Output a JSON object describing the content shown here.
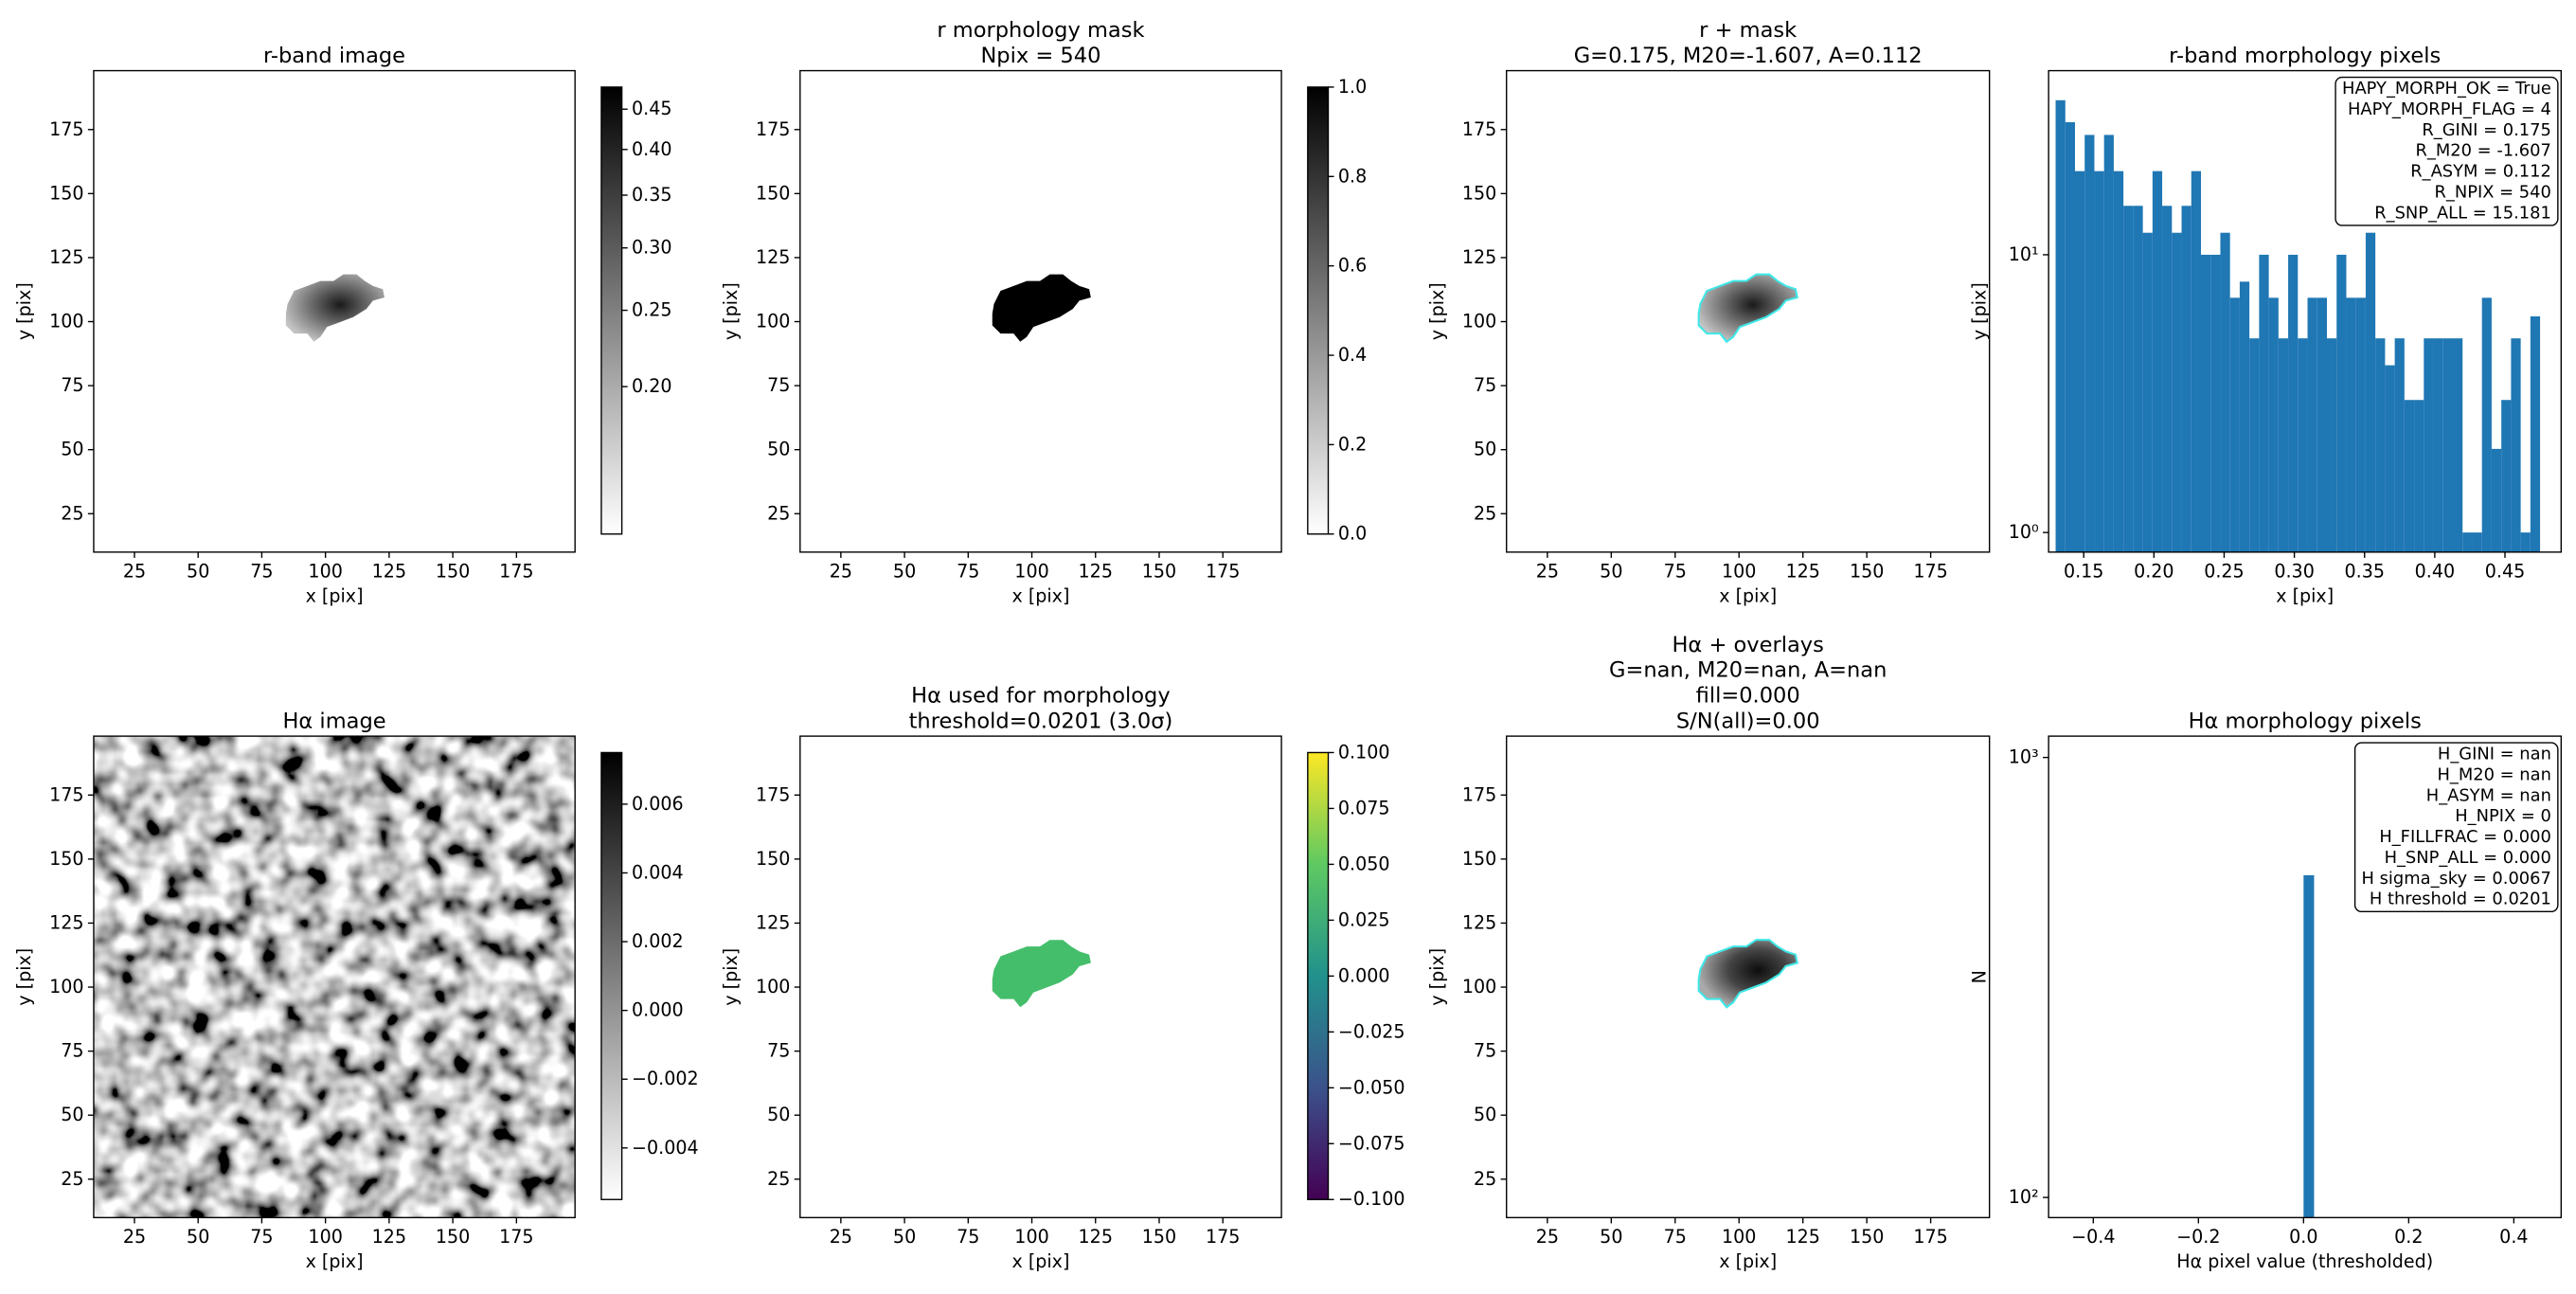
{
  "chart_data": [
    {
      "type": "image",
      "title": [
        "r-band image"
      ],
      "xlabel": "x [pix]",
      "ylabel": "y [pix]",
      "xlim": [
        9,
        198
      ],
      "ylim": [
        10,
        198
      ],
      "xticks": [
        25,
        50,
        75,
        100,
        125,
        150,
        175
      ],
      "yticks": [
        25,
        50,
        75,
        100,
        125,
        150,
        175
      ],
      "cmap": "gray_r",
      "cscale": "log",
      "clim": [
        0.13,
        0.48
      ],
      "cticks": [
        {
          "value": 0.2,
          "label": "0.20"
        },
        0.25,
        {
          "value": 0.3,
          "label": "0.30"
        },
        0.35,
        {
          "value": 0.4,
          "label": "0.40"
        },
        0.45
      ]
    },
    {
      "type": "image",
      "title": [
        "r morphology mask",
        "Npix = 540"
      ],
      "xlabel": "x [pix]",
      "ylabel": "y [pix]",
      "xlim": [
        9,
        198
      ],
      "ylim": [
        10,
        198
      ],
      "xticks": [
        25,
        50,
        75,
        100,
        125,
        150,
        175
      ],
      "yticks": [
        25,
        50,
        75,
        100,
        125,
        150,
        175
      ],
      "cmap": "gray_r",
      "cscale": "linear",
      "clim": [
        0,
        1
      ],
      "cticks": [
        {
          "value": 0,
          "label": "0.0"
        },
        0.2,
        0.4,
        0.6,
        0.8,
        {
          "value": 1,
          "label": "1.0"
        }
      ]
    },
    {
      "type": "image",
      "title": [
        "r + mask",
        "G=0.175, M20=-1.607, A=0.112"
      ],
      "xlabel": "x [pix]",
      "ylabel": "y [pix]",
      "xlim": [
        9,
        198
      ],
      "ylim": [
        10,
        198
      ],
      "xticks": [
        25,
        50,
        75,
        100,
        125,
        150,
        175
      ],
      "yticks": [
        25,
        50,
        75,
        100,
        125,
        150,
        175
      ]
    },
    {
      "type": "histogram",
      "title": [
        "r-band morphology pixels"
      ],
      "xlabel": "x [pix]",
      "ylabel": "y [pix]",
      "color": "#1f77b4",
      "yscale": "log",
      "bins": [
        0.13,
        0.1369,
        0.1438,
        0.1507,
        0.1576,
        0.1645,
        0.1714,
        0.1783,
        0.1852,
        0.1921,
        0.199,
        0.2059,
        0.2128,
        0.2197,
        0.2266,
        0.2335,
        0.2404,
        0.2473,
        0.2542,
        0.2611,
        0.268,
        0.2749,
        0.2818,
        0.2887,
        0.2956,
        0.3025,
        0.3094,
        0.3163,
        0.3232,
        0.3301,
        0.337,
        0.3439,
        0.3508,
        0.3577,
        0.3646,
        0.3715,
        0.3784,
        0.3853,
        0.3922,
        0.3991,
        0.406,
        0.4129,
        0.4198,
        0.4267,
        0.4336,
        0.4405,
        0.4474,
        0.4543,
        0.4612,
        0.4681,
        0.475
      ],
      "values": [
        36,
        30,
        20,
        27,
        20,
        27,
        20,
        15,
        15,
        12,
        20,
        15,
        12,
        15,
        20,
        10,
        10,
        12,
        7,
        8,
        5,
        10,
        7,
        5,
        10,
        5,
        7,
        7,
        5,
        10,
        7,
        7,
        12,
        5,
        4,
        5,
        3,
        3,
        5,
        5,
        5,
        5,
        1,
        1,
        7,
        2,
        3,
        5,
        1,
        6
      ],
      "xlim": [
        0.125,
        0.49
      ],
      "xticks": [
        0.15,
        {
          "value": 0.2,
          "label": "0.20"
        },
        0.25,
        {
          "value": 0.3,
          "label": "0.30"
        },
        0.35,
        {
          "value": 0.4,
          "label": "0.40"
        },
        0.45
      ],
      "ylim": [
        0.85,
        46
      ],
      "yticks": [
        {
          "value": 1,
          "label": "10⁰"
        },
        {
          "value": 10,
          "label": "10¹"
        }
      ],
      "annotation": [
        "HAPY_MORPH_OK = True",
        "HAPY_MORPH_FLAG = 4",
        "R_GINI = 0.175",
        "R_M20 = -1.607",
        "R_ASYM = 0.112",
        "R_NPIX = 540",
        "R_SNP_ALL = 15.181"
      ]
    },
    {
      "type": "image",
      "title": [
        "Hα image"
      ],
      "xlabel": "x [pix]",
      "ylabel": "y [pix]",
      "xlim": [
        9,
        198
      ],
      "ylim": [
        10,
        198
      ],
      "xticks": [
        25,
        50,
        75,
        100,
        125,
        150,
        175
      ],
      "yticks": [
        25,
        50,
        75,
        100,
        125,
        150,
        175
      ],
      "cmap": "gray_r",
      "cscale": "linear",
      "clim": [
        -0.0055,
        0.0075
      ],
      "cticks": [
        0.006,
        0.004,
        0.002,
        {
          "value": 0,
          "label": "0.000"
        },
        {
          "value": -0.002,
          "label": "−0.002"
        },
        {
          "value": -0.004,
          "label": "−0.004"
        }
      ]
    },
    {
      "type": "image",
      "title": [
        "Hα used for morphology",
        "threshold=0.0201 (3.0σ)"
      ],
      "xlabel": "x [pix]",
      "ylabel": "y [pix]",
      "xlim": [
        9,
        198
      ],
      "ylim": [
        10,
        198
      ],
      "xticks": [
        25,
        50,
        75,
        100,
        125,
        150,
        175
      ],
      "yticks": [
        25,
        50,
        75,
        100,
        125,
        150,
        175
      ],
      "cmap": "viridis",
      "cscale": "linear",
      "clim": [
        -0.1,
        0.1
      ],
      "cticks": [
        {
          "value": 0.1,
          "label": "0.100"
        },
        0.075,
        {
          "value": 0.05,
          "label": "0.050"
        },
        0.025,
        {
          "value": 0,
          "label": "0.000"
        },
        {
          "value": -0.025,
          "label": "−0.025"
        },
        {
          "value": -0.05,
          "label": "−0.050"
        },
        {
          "value": -0.075,
          "label": "−0.075"
        },
        {
          "value": -0.1,
          "label": "−0.100"
        }
      ]
    },
    {
      "type": "image",
      "title": [
        "Hα + overlays",
        "G=nan, M20=nan, A=nan",
        "fill=0.000",
        "S/N(all)=0.00"
      ],
      "xlabel": "x [pix]",
      "ylabel": "y [pix]",
      "xlim": [
        9,
        198
      ],
      "ylim": [
        10,
        198
      ],
      "xticks": [
        25,
        50,
        75,
        100,
        125,
        150,
        175
      ],
      "yticks": [
        25,
        50,
        75,
        100,
        125,
        150,
        175
      ]
    },
    {
      "type": "histogram",
      "title": [
        "Hα morphology pixels"
      ],
      "xlabel": "Hα pixel value (thresholded)",
      "ylabel": "N",
      "color": "#1f77b4",
      "yscale": "log",
      "bins": [
        0,
        0.02
      ],
      "values": [
        540
      ],
      "xlim": [
        -0.485,
        0.49
      ],
      "xticks": [
        {
          "value": -0.4,
          "label": "−0.4"
        },
        {
          "value": -0.2,
          "label": "−0.2"
        },
        {
          "value": 0,
          "label": "0.0"
        },
        0.2,
        0.4
      ],
      "ylim": [
        90,
        1118
      ],
      "yticks": [
        {
          "value": 100,
          "label": "10²"
        },
        {
          "value": 1000,
          "label": "10³"
        }
      ],
      "annotation": [
        "H_GINI = nan",
        "H_M20 = nan",
        "H_ASYM = nan",
        "H_NPIX = 0",
        "H_FILLFRAC = 0.000",
        "H_SNP_ALL = 0.000",
        "H sigma_sky = 0.0067",
        "H threshold = 0.0201"
      ]
    }
  ]
}
